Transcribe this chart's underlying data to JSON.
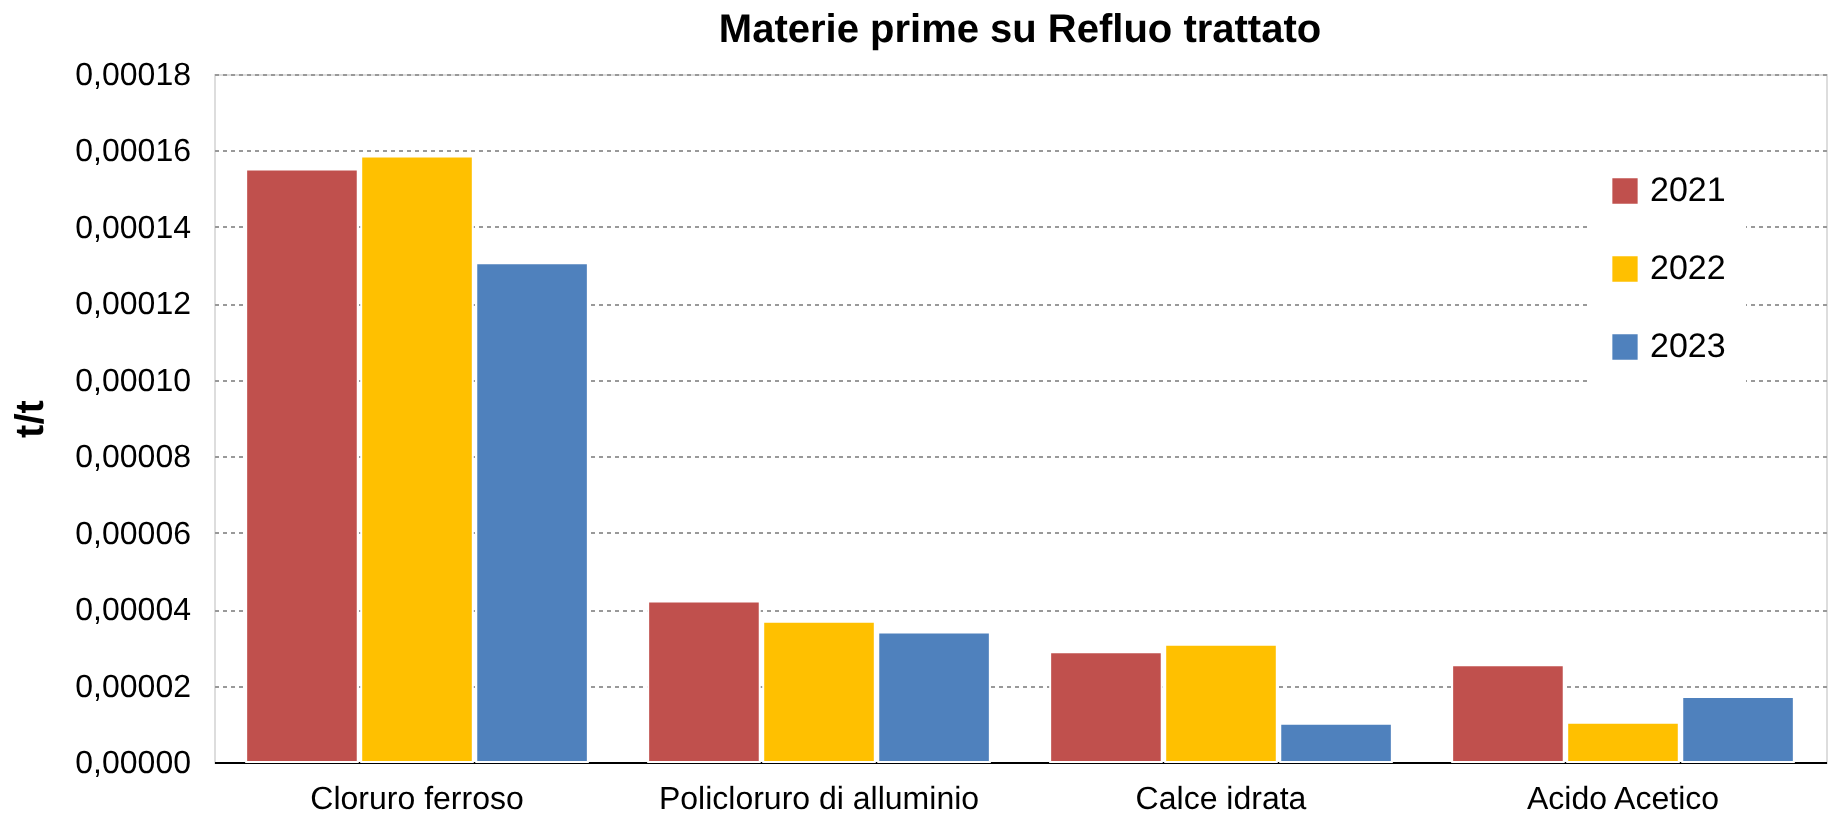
{
  "chart_data": {
    "type": "bar",
    "title": "Materie prime su Refluo trattato",
    "ylabel": "t/t",
    "categories": [
      "Cloruro ferroso",
      "Policloruro di alluminio",
      "Calce idrata",
      "Acido Acetico"
    ],
    "series": [
      {
        "name": "2021",
        "color": "#c0504d",
        "values": [
          0.000155,
          4.2e-05,
          2.87e-05,
          2.53e-05
        ]
      },
      {
        "name": "2022",
        "color": "#ffc000",
        "values": [
          0.0001584,
          3.67e-05,
          3.07e-05,
          1.03e-05
        ]
      },
      {
        "name": "2023",
        "color": "#4f81bd",
        "values": [
          0.0001305,
          3.39e-05,
          1e-05,
          1.7e-05
        ]
      }
    ],
    "ylim": [
      0,
      0.00018
    ],
    "yticks": [
      {
        "value": 0,
        "label": "0,00000"
      },
      {
        "value": 2e-05,
        "label": "0,00002"
      },
      {
        "value": 4e-05,
        "label": "0,00004"
      },
      {
        "value": 6e-05,
        "label": "0,00006"
      },
      {
        "value": 8e-05,
        "label": "0,00008"
      },
      {
        "value": 0.0001,
        "label": "0,00010"
      },
      {
        "value": 0.00012,
        "label": "0,00012"
      },
      {
        "value": 0.00014,
        "label": "0,00014"
      },
      {
        "value": 0.00016,
        "label": "0,00016"
      },
      {
        "value": 0.00018,
        "label": "0,00018"
      }
    ],
    "grid": "y",
    "legend": "top right"
  }
}
